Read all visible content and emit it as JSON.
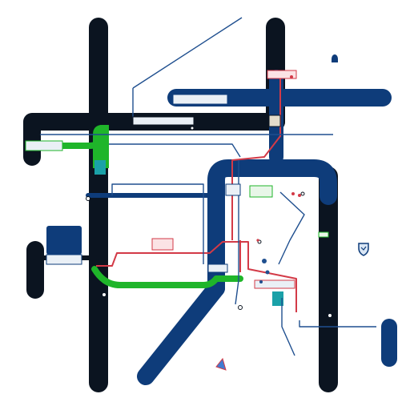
{
  "map": {
    "background": "#ffffff",
    "colors": {
      "dark_line": "#0b1420",
      "blue_line": "#0e3c7a",
      "green_line": "#1fb52a",
      "red_line": "#d33a47",
      "thin_blue": "#1f4f8f",
      "teal_accent": "#1aa1a8",
      "label_bg": "#eaf0f6"
    },
    "legend": {
      "label": ""
    },
    "icons": [
      {
        "name": "location-pin-icon"
      },
      {
        "name": "shield-icon"
      },
      {
        "name": "marker-icon"
      }
    ]
  }
}
